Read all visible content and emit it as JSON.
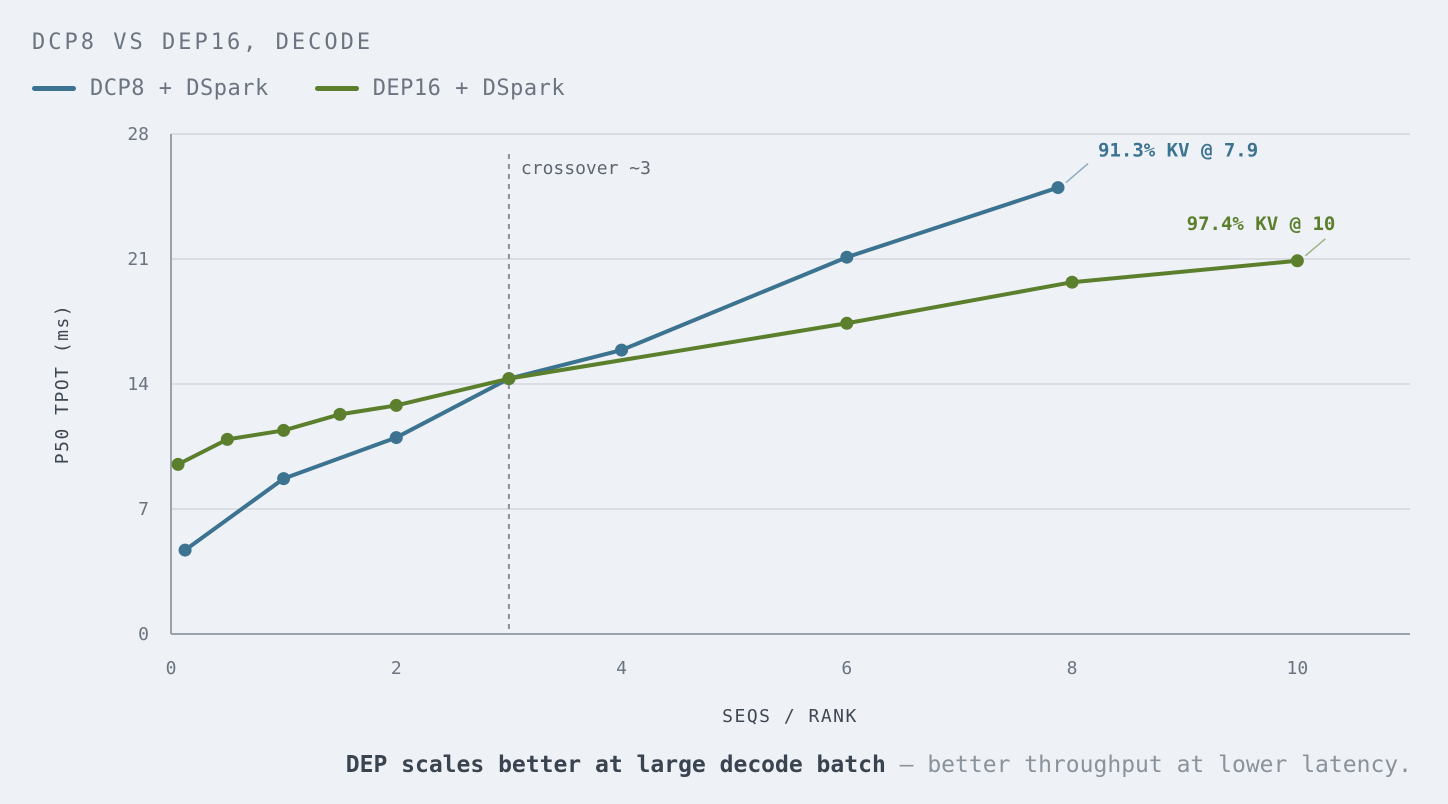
{
  "chart_data": {
    "type": "line",
    "title": "DCP8 VS DEP16, DECODE",
    "xlabel": "SEQS / RANK",
    "ylabel": "P50 TPOT (ms)",
    "xlim": [
      0,
      11.0
    ],
    "ylim": [
      0,
      28
    ],
    "xticks": [
      0,
      2,
      4,
      6,
      8,
      10
    ],
    "yticks": [
      0,
      7,
      14,
      21,
      28
    ],
    "grid": "horizontal",
    "legend_position": "top-left",
    "series": [
      {
        "name": "DCP8 + DSpark",
        "color": "#3c7391",
        "x": [
          0.125,
          1,
          2,
          3,
          4,
          6,
          7.875
        ],
        "y": [
          4.7,
          8.7,
          11.0,
          14.3,
          15.9,
          21.1,
          25.0
        ]
      },
      {
        "name": "DEP16 + DSpark",
        "color": "#5b7f2d",
        "x": [
          0.0625,
          0.5,
          1,
          1.5,
          2,
          3,
          6,
          8,
          10
        ],
        "y": [
          9.5,
          10.9,
          11.4,
          12.3,
          12.8,
          14.3,
          17.4,
          19.7,
          20.9
        ]
      }
    ],
    "annotations": [
      {
        "text": "91.3% KV @ 7.9",
        "series": 0,
        "point": 6,
        "color": "#3c7391"
      },
      {
        "text": "97.4% KV @ 10",
        "series": 1,
        "point": 8,
        "color": "#5b7f2d"
      }
    ],
    "vline": {
      "x": 3,
      "label": "crossover ~3"
    }
  },
  "caption": {
    "bold": "DEP scales better at large decode batch",
    "rest": " — better throughput at lower latency."
  }
}
